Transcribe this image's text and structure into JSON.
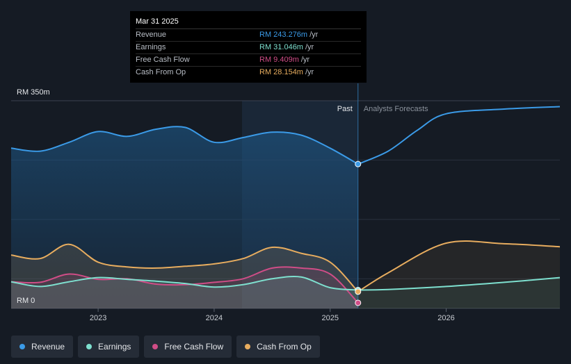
{
  "tooltip": {
    "date": "Mar 31 2025",
    "rows": [
      {
        "label": "Revenue",
        "value": "RM 243.276m",
        "unit": "/yr",
        "color": "#3b9be8"
      },
      {
        "label": "Earnings",
        "value": "RM 31.046m",
        "unit": "/yr",
        "color": "#7ee0cf"
      },
      {
        "label": "Free Cash Flow",
        "value": "RM 9.409m",
        "unit": "/yr",
        "color": "#d04d87"
      },
      {
        "label": "Cash From Op",
        "value": "RM 28.154m",
        "unit": "/yr",
        "color": "#e8ad5f"
      }
    ]
  },
  "legend": [
    {
      "label": "Revenue",
      "color": "#3b9be8"
    },
    {
      "label": "Earnings",
      "color": "#7ee0cf"
    },
    {
      "label": "Free Cash Flow",
      "color": "#d04d87"
    },
    {
      "label": "Cash From Op",
      "color": "#e8ad5f"
    }
  ],
  "chart_data": {
    "type": "line",
    "y_top_label": "RM 350m",
    "y_bottom_label": "RM 0",
    "ylim": [
      0,
      350
    ],
    "xlim": [
      2022.25,
      2026.98
    ],
    "past_label": "Past",
    "forecast_label": "Analysts Forecasts",
    "past_start": 2024.24,
    "divider_x": 2025.24,
    "x_ticks": [
      {
        "value": 2023,
        "label": "2023"
      },
      {
        "value": 2024,
        "label": "2024"
      },
      {
        "value": 2025,
        "label": "2025"
      },
      {
        "value": 2026,
        "label": "2026"
      }
    ],
    "series": [
      {
        "name": "Revenue",
        "color": "#3b9be8",
        "x": [
          2022.25,
          2022.5,
          2022.75,
          2023.0,
          2023.25,
          2023.5,
          2023.75,
          2024.0,
          2024.25,
          2024.5,
          2024.75,
          2025.0,
          2025.24
        ],
        "values": [
          270,
          265,
          280,
          298,
          290,
          302,
          305,
          280,
          288,
          297,
          292,
          270,
          243.3
        ],
        "forecast_x": [
          2025.24,
          2025.5,
          2025.75,
          2026.0,
          2026.5,
          2026.98
        ],
        "forecast_values": [
          243.3,
          265,
          300,
          328,
          336,
          340
        ]
      },
      {
        "name": "Earnings",
        "color": "#7ee0cf",
        "x": [
          2022.25,
          2022.5,
          2022.75,
          2023.0,
          2023.25,
          2023.5,
          2023.75,
          2024.0,
          2024.25,
          2024.5,
          2024.75,
          2025.0,
          2025.24
        ],
        "values": [
          45,
          37,
          45,
          52,
          49,
          46,
          42,
          36,
          40,
          50,
          53,
          35,
          31.0
        ],
        "forecast_x": [
          2025.24,
          2025.5,
          2026.0,
          2026.5,
          2026.98
        ],
        "forecast_values": [
          31.0,
          32,
          37,
          44,
          52
        ]
      },
      {
        "name": "Free Cash Flow",
        "color": "#d04d87",
        "x": [
          2022.25,
          2022.5,
          2022.75,
          2023.0,
          2023.25,
          2023.5,
          2023.75,
          2024.0,
          2024.25,
          2024.5,
          2024.75,
          2025.0,
          2025.24
        ],
        "values": [
          45,
          44,
          58,
          49,
          50,
          41,
          40,
          44,
          50,
          68,
          68,
          58,
          9.4
        ]
      },
      {
        "name": "Cash From Op",
        "color": "#e8ad5f",
        "x": [
          2022.25,
          2022.5,
          2022.75,
          2023.0,
          2023.25,
          2023.5,
          2023.75,
          2024.0,
          2024.25,
          2024.5,
          2024.75,
          2025.0,
          2025.24
        ],
        "values": [
          90,
          84,
          108,
          78,
          70,
          68,
          71,
          75,
          84,
          103,
          93,
          78,
          28.2
        ],
        "forecast_x": [
          2025.24,
          2025.5,
          2026.0,
          2026.5,
          2026.98
        ],
        "forecast_values": [
          28.2,
          60,
          110,
          109,
          104
        ]
      }
    ]
  }
}
